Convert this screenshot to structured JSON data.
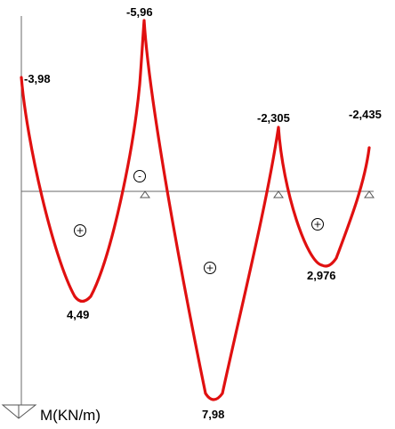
{
  "diagram": {
    "axis_title": "M(KN/m)",
    "line_color": "#e01010",
    "value_labels": {
      "left_support": "-3,98",
      "span1_min": "4,49",
      "support2": "-5,96",
      "span2_min": "7,98",
      "support3": "-2,305",
      "span3_min": "2,976",
      "right_support": "-2,435"
    },
    "signs": {
      "span1": "+",
      "support2": "-",
      "span2": "+",
      "span3": "+"
    }
  }
}
